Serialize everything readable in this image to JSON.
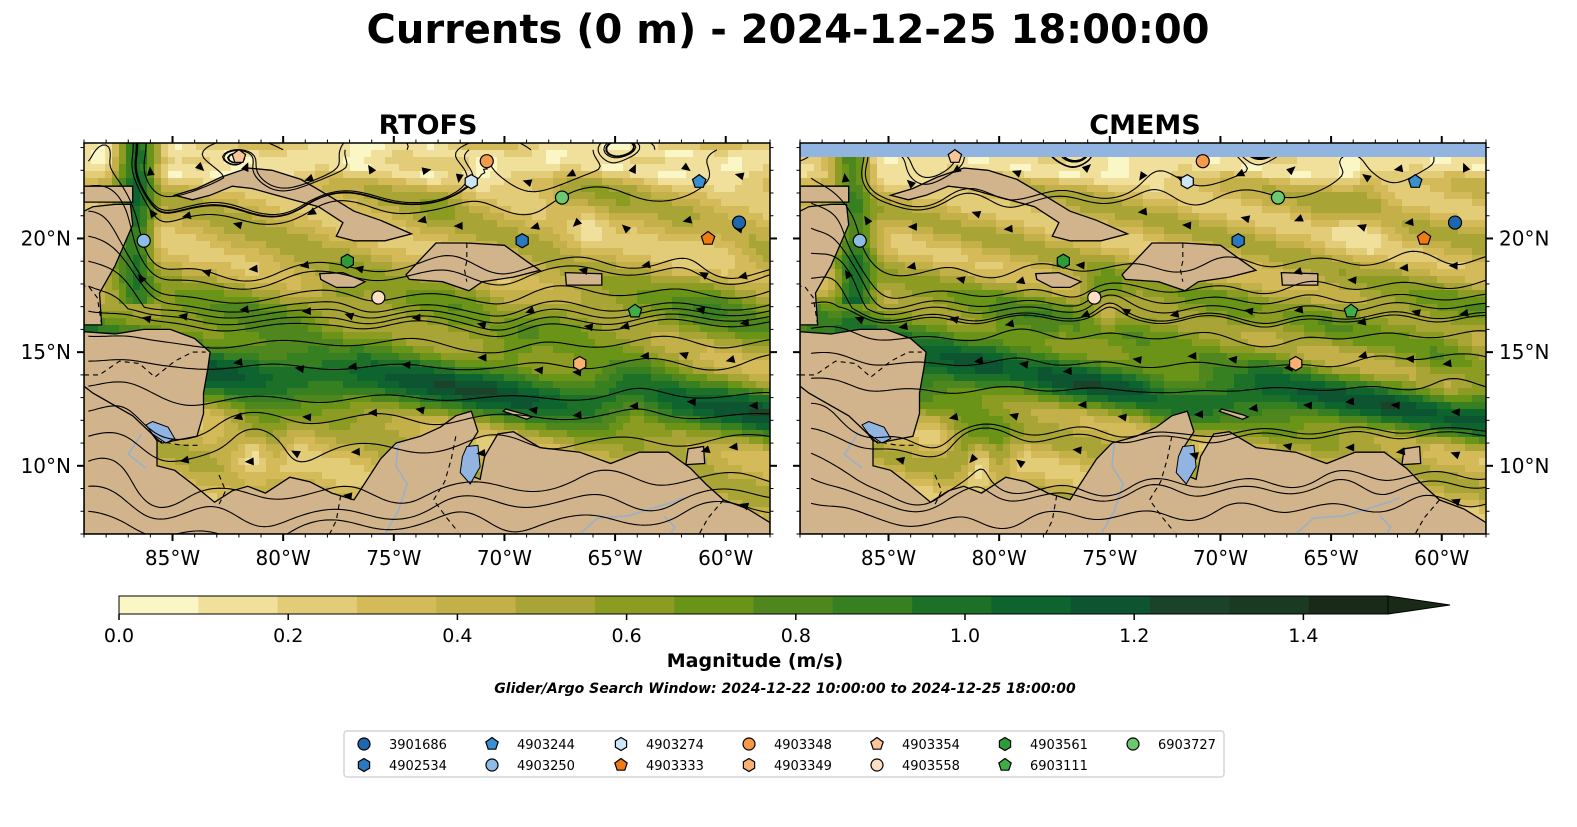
{
  "figure": {
    "title": "Currents (0 m) - 2024-12-25 18:00:00",
    "note": "Glider/Argo Search Window: 2024-12-22 10:00:00 to 2024-12-25 18:00:00"
  },
  "map": {
    "lon_range": [
      -89,
      -58
    ],
    "lat_range": [
      7,
      24.2
    ],
    "lon_ticks": [
      -85,
      -80,
      -75,
      -70,
      -65,
      -60
    ],
    "lat_ticks": [
      10,
      15,
      20
    ],
    "lon_tick_labels": [
      "85°W",
      "80°W",
      "75°W",
      "70°W",
      "65°W",
      "60°W"
    ],
    "lat_tick_labels": [
      "10°N",
      "15°N",
      "20°N"
    ],
    "colors": {
      "land": "#d2b48c",
      "water": "#92b4e0",
      "low_speed": "#f8f0b4",
      "high_speed": "#0b6a2a",
      "streamline": "#000000"
    }
  },
  "panels": [
    {
      "title": "RTOFS",
      "north_mask": false
    },
    {
      "title": "CMEMS",
      "north_mask": true
    }
  ],
  "colorbar": {
    "label": "Magnitude (m/s)",
    "range": [
      0,
      1.5
    ],
    "ticks": [
      0.0,
      0.2,
      0.4,
      0.6,
      0.8,
      1.0,
      1.2,
      1.4
    ],
    "tick_labels": [
      "0.0",
      "0.2",
      "0.4",
      "0.6",
      "0.8",
      "1.0",
      "1.2",
      "1.4"
    ],
    "colors": [
      "#fbf6c6",
      "#f0e09c",
      "#e2cc78",
      "#d4ba58",
      "#c4b048",
      "#a8a436",
      "#8c9c22",
      "#6a9418",
      "#50861e",
      "#378022",
      "#1c7028",
      "#0d642e",
      "#0d5430",
      "#1a432a",
      "#1b3a22",
      "#1a2a18"
    ],
    "extend": "max"
  },
  "legend": {
    "entries": [
      {
        "id": "3901686",
        "marker": "circle",
        "color": "#1f67ad"
      },
      {
        "id": "4902534",
        "marker": "hexagon",
        "color": "#2a78c0"
      },
      {
        "id": "4903244",
        "marker": "pentagon",
        "color": "#3a8fd0"
      },
      {
        "id": "4903250",
        "marker": "circle",
        "color": "#8dbce6"
      },
      {
        "id": "4903274",
        "marker": "hexagon",
        "color": "#cde6f7"
      },
      {
        "id": "4903333",
        "marker": "pentagon",
        "color": "#f07a14"
      },
      {
        "id": "4903348",
        "marker": "circle",
        "color": "#f59a48"
      },
      {
        "id": "4903349",
        "marker": "hexagon",
        "color": "#f9b070"
      },
      {
        "id": "4903354",
        "marker": "pentagon",
        "color": "#fac598"
      },
      {
        "id": "4903558",
        "marker": "circle",
        "color": "#fde0c4"
      },
      {
        "id": "4903561",
        "marker": "hexagon",
        "color": "#2e9b3a"
      },
      {
        "id": "6903111",
        "marker": "pentagon",
        "color": "#3fae48"
      },
      {
        "id": "6903727",
        "marker": "circle",
        "color": "#6cc970"
      }
    ]
  },
  "floats": [
    {
      "id": "3901686",
      "lon": -59.4,
      "lat": 20.7
    },
    {
      "id": "4902534",
      "lon": -69.2,
      "lat": 19.9
    },
    {
      "id": "4903244",
      "lon": -61.2,
      "lat": 22.5
    },
    {
      "id": "4903250",
      "lon": -86.3,
      "lat": 19.9
    },
    {
      "id": "4903274",
      "lon": -71.5,
      "lat": 22.5
    },
    {
      "id": "4903333",
      "lon": -60.8,
      "lat": 20.0
    },
    {
      "id": "4903348",
      "lon": -70.8,
      "lat": 23.4
    },
    {
      "id": "4903349",
      "lon": -66.6,
      "lat": 14.5
    },
    {
      "id": "4903354",
      "lon": -82.0,
      "lat": 23.6
    },
    {
      "id": "4903558",
      "lon": -75.7,
      "lat": 17.4
    },
    {
      "id": "4903561",
      "lon": -77.1,
      "lat": 19.0
    },
    {
      "id": "6903111",
      "lon": -64.1,
      "lat": 16.8
    },
    {
      "id": "6903727",
      "lon": -67.4,
      "lat": 21.8
    }
  ]
}
